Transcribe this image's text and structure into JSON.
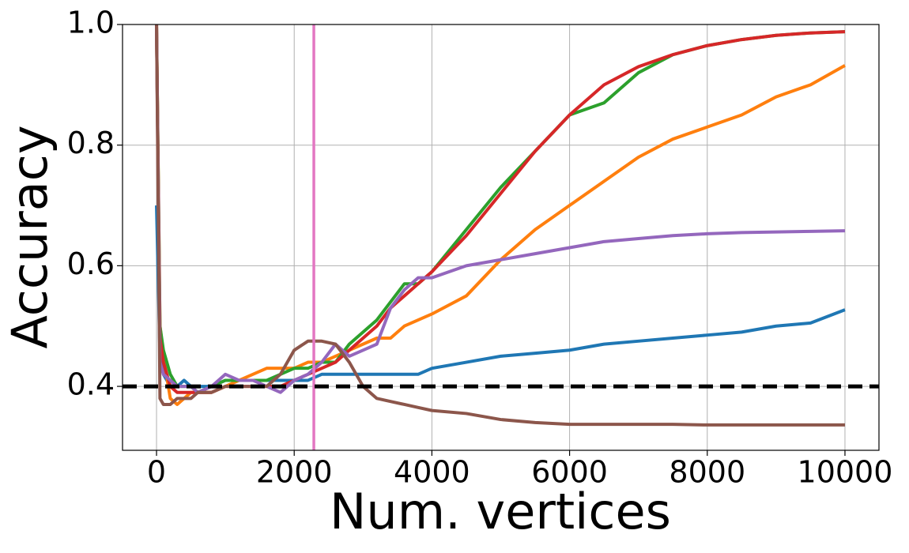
{
  "chart_data": {
    "type": "line",
    "xlabel": "Num. vertices",
    "ylabel": "Accuracy",
    "x": [
      0,
      50,
      100,
      200,
      300,
      400,
      500,
      600,
      800,
      1000,
      1200,
      1400,
      1600,
      1800,
      2000,
      2200,
      2400,
      2600,
      2800,
      3000,
      3200,
      3400,
      3600,
      3800,
      4000,
      4500,
      5000,
      5500,
      6000,
      6500,
      7000,
      7500,
      8000,
      8500,
      9000,
      9500,
      10000
    ],
    "series": [
      {
        "color": "#1f77b4",
        "values": [
          0.7,
          0.45,
          0.42,
          0.4,
          0.4,
          0.41,
          0.4,
          0.4,
          0.4,
          0.41,
          0.41,
          0.41,
          0.41,
          0.41,
          0.41,
          0.41,
          0.42,
          0.42,
          0.42,
          0.42,
          0.42,
          0.42,
          0.42,
          0.42,
          0.43,
          0.44,
          0.45,
          0.455,
          0.46,
          0.47,
          0.475,
          0.48,
          0.485,
          0.49,
          0.5,
          0.505,
          0.527
        ]
      },
      {
        "color": "#ff7f0e",
        "values": [
          1.0,
          0.5,
          0.45,
          0.38,
          0.37,
          0.38,
          0.39,
          0.39,
          0.39,
          0.4,
          0.41,
          0.42,
          0.43,
          0.43,
          0.43,
          0.44,
          0.44,
          0.45,
          0.46,
          0.47,
          0.48,
          0.48,
          0.5,
          0.51,
          0.52,
          0.55,
          0.61,
          0.66,
          0.7,
          0.74,
          0.78,
          0.81,
          0.83,
          0.85,
          0.88,
          0.9,
          0.932
        ]
      },
      {
        "color": "#2ca02c",
        "values": [
          1.0,
          0.5,
          0.46,
          0.42,
          0.4,
          0.4,
          0.4,
          0.39,
          0.4,
          0.41,
          0.41,
          0.41,
          0.41,
          0.42,
          0.43,
          0.43,
          0.44,
          0.44,
          0.47,
          0.49,
          0.51,
          0.54,
          0.57,
          0.57,
          0.59,
          0.66,
          0.73,
          0.79,
          0.85,
          0.87,
          0.92,
          0.95,
          0.965,
          0.975,
          0.982,
          0.986,
          0.988
        ]
      },
      {
        "color": "#d62728",
        "values": [
          1.0,
          0.48,
          0.44,
          0.4,
          0.39,
          0.39,
          0.39,
          0.39,
          0.39,
          0.4,
          0.4,
          0.4,
          0.4,
          0.4,
          0.41,
          0.42,
          0.43,
          0.44,
          0.46,
          0.48,
          0.5,
          0.53,
          0.55,
          0.57,
          0.59,
          0.65,
          0.72,
          0.79,
          0.85,
          0.9,
          0.93,
          0.95,
          0.965,
          0.975,
          0.982,
          0.986,
          0.988
        ]
      },
      {
        "color": "#9467bd",
        "values": [
          1.0,
          0.44,
          0.42,
          0.41,
          0.4,
          0.4,
          0.4,
          0.39,
          0.4,
          0.42,
          0.41,
          0.41,
          0.4,
          0.39,
          0.41,
          0.42,
          0.44,
          0.47,
          0.45,
          0.46,
          0.47,
          0.53,
          0.56,
          0.58,
          0.58,
          0.6,
          0.61,
          0.62,
          0.63,
          0.64,
          0.645,
          0.65,
          0.653,
          0.655,
          0.656,
          0.657,
          0.658
        ]
      },
      {
        "color": "#8c564b",
        "values": [
          1.0,
          0.38,
          0.37,
          0.37,
          0.38,
          0.38,
          0.38,
          0.39,
          0.39,
          0.4,
          0.4,
          0.4,
          0.4,
          0.42,
          0.46,
          0.475,
          0.475,
          0.47,
          0.44,
          0.4,
          0.38,
          0.375,
          0.37,
          0.365,
          0.36,
          0.355,
          0.345,
          0.34,
          0.337,
          0.337,
          0.337,
          0.337,
          0.336,
          0.336,
          0.336,
          0.336,
          0.336
        ]
      }
    ],
    "xlim": [
      -494,
      10494
    ],
    "ylim": [
      0.294,
      1.0
    ],
    "xticks": [
      0,
      2000,
      4000,
      6000,
      8000,
      10000
    ],
    "yticks": [
      0.4,
      0.6,
      0.8,
      {
        "value": 1.0,
        "label": "1.0"
      }
    ],
    "grid": true,
    "hline": 0.4,
    "hline_color": "#000000",
    "vline": 2285,
    "vline_color": "#e377c2"
  }
}
